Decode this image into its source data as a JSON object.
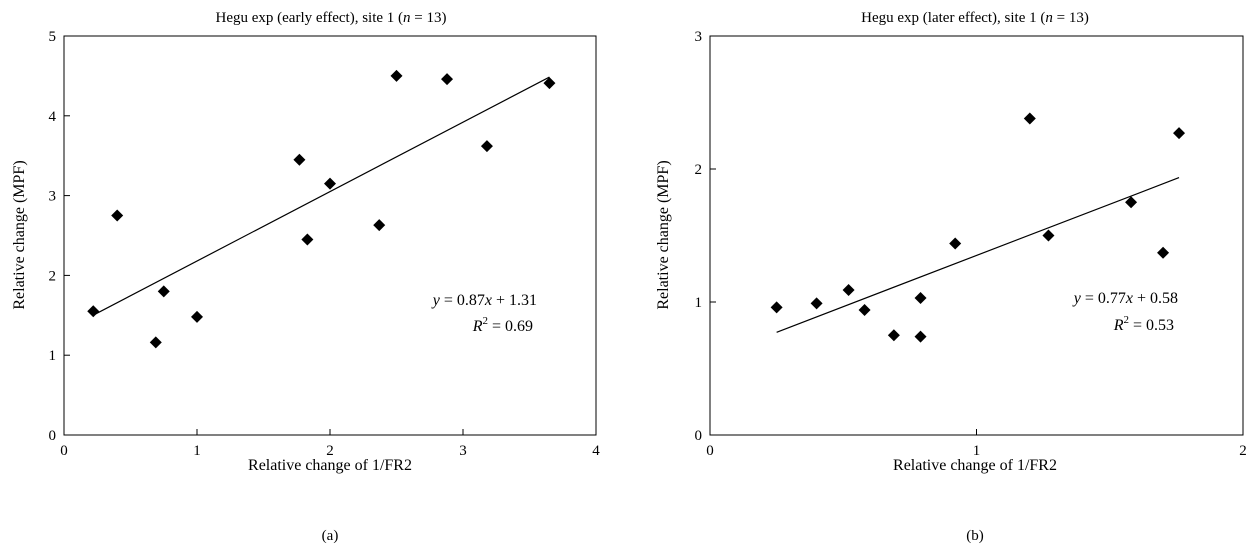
{
  "chart_data": [
    {
      "type": "scatter",
      "title": "Hegu exp (early effect), site 1 (",
      "title_n": "n",
      "title_rest": " = 13)",
      "xlabel": "Relative change of 1/FR2",
      "ylabel": "Relative change (MPF)",
      "xlim": [
        0,
        4
      ],
      "ylim": [
        0,
        5
      ],
      "xticks": [
        "0",
        "1",
        "2",
        "3",
        "4"
      ],
      "yticks": [
        "0",
        "1",
        "2",
        "3",
        "4",
        "5"
      ],
      "points": [
        {
          "x": 0.22,
          "y": 1.55
        },
        {
          "x": 0.4,
          "y": 2.75
        },
        {
          "x": 0.69,
          "y": 1.16
        },
        {
          "x": 0.75,
          "y": 1.8
        },
        {
          "x": 1.0,
          "y": 1.48
        },
        {
          "x": 1.77,
          "y": 3.45
        },
        {
          "x": 1.83,
          "y": 2.45
        },
        {
          "x": 2.0,
          "y": 3.15
        },
        {
          "x": 2.37,
          "y": 2.63
        },
        {
          "x": 2.5,
          "y": 4.5
        },
        {
          "x": 2.88,
          "y": 4.46
        },
        {
          "x": 3.18,
          "y": 3.62
        },
        {
          "x": 3.65,
          "y": 4.41
        }
      ],
      "fit": {
        "slope": 0.87,
        "intercept": 1.31,
        "x_range": [
          0.22,
          3.65
        ]
      },
      "equation": {
        "y": "y",
        "eq1": " = 0.87",
        "x": "x",
        "eq2": " + 1.31",
        "r": "R",
        "sup": "2",
        "r2": " = 0.69"
      },
      "caption": "(a)",
      "marker_color": "#000000"
    },
    {
      "type": "scatter",
      "title": "Hegu exp (later effect), site 1 (",
      "title_n": "n",
      "title_rest": " = 13)",
      "xlabel": "Relative change of 1/FR2",
      "ylabel": "Relative change (MPF)",
      "xlim": [
        0,
        2
      ],
      "ylim": [
        0,
        3
      ],
      "xticks": [
        "0",
        "1",
        "2"
      ],
      "yticks": [
        "0",
        "1",
        "2",
        "3"
      ],
      "points": [
        {
          "x": 0.25,
          "y": 0.96
        },
        {
          "x": 0.4,
          "y": 0.99
        },
        {
          "x": 0.52,
          "y": 1.09
        },
        {
          "x": 0.58,
          "y": 0.94
        },
        {
          "x": 0.69,
          "y": 0.75
        },
        {
          "x": 0.79,
          "y": 1.03
        },
        {
          "x": 0.79,
          "y": 0.74
        },
        {
          "x": 0.92,
          "y": 1.44
        },
        {
          "x": 1.2,
          "y": 2.38
        },
        {
          "x": 1.27,
          "y": 1.5
        },
        {
          "x": 1.58,
          "y": 1.75
        },
        {
          "x": 1.7,
          "y": 1.37
        },
        {
          "x": 1.76,
          "y": 2.27
        }
      ],
      "fit": {
        "slope": 0.77,
        "intercept": 0.58,
        "x_range": [
          0.25,
          1.76
        ]
      },
      "equation": {
        "y": "y",
        "eq1": " = 0.77",
        "x": "x",
        "eq2": " + 0.58",
        "r": "R",
        "sup": "2",
        "r2": " = 0.53"
      },
      "caption": "(b)",
      "marker_color": "#000000"
    }
  ]
}
